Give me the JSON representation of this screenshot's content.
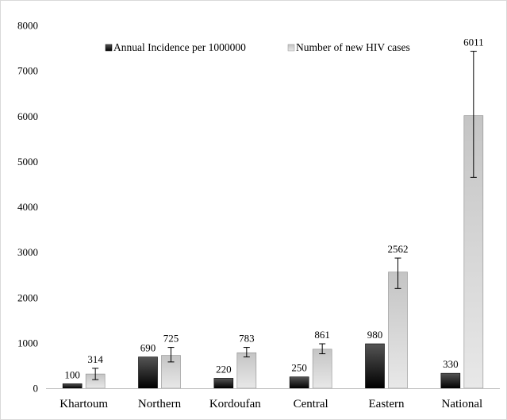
{
  "chart_data": {
    "type": "bar",
    "categories": [
      "Khartoum",
      "Northern",
      "Kordoufan",
      "Central",
      "Eastern",
      "National"
    ],
    "series": [
      {
        "name": "Annual Incidence per 1000000",
        "values": [
          100,
          690,
          220,
          250,
          980,
          330
        ],
        "labels": [
          "100",
          "690",
          "220",
          "250",
          "980",
          "330"
        ],
        "color_top": "#4d4d4d",
        "color_bottom": "#000000"
      },
      {
        "name": "Number of new HIV cases",
        "values": [
          314,
          725,
          783,
          861,
          2562,
          6011
        ],
        "labels": [
          "314",
          "725",
          "783",
          "861",
          "2562",
          "6011"
        ],
        "error_low": [
          190,
          580,
          690,
          760,
          2200,
          4650
        ],
        "error_high": [
          440,
          900,
          900,
          980,
          2870,
          7430
        ],
        "color_top": "#c8c8c8",
        "color_bottom": "#e6e6e6"
      }
    ],
    "ylim": [
      0,
      8000
    ],
    "yticks": [
      "0",
      "1000",
      "2000",
      "3000",
      "4000",
      "5000",
      "6000",
      "7000",
      "8000"
    ],
    "ytick_values": [
      0,
      1000,
      2000,
      3000,
      4000,
      5000,
      6000,
      7000,
      8000
    ],
    "grid": false,
    "legend_position": "top"
  }
}
